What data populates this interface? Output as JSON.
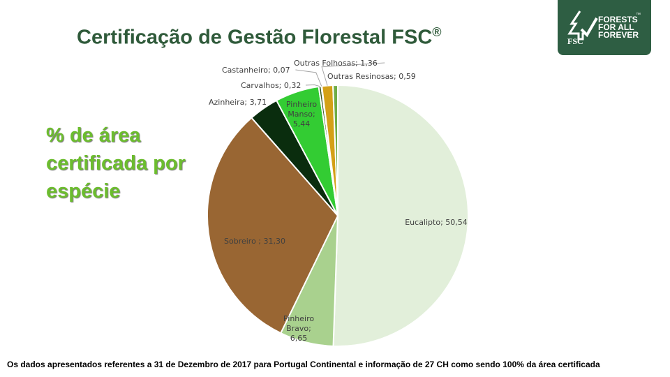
{
  "header": {
    "title": "Certificação de Gestão Florestal FSC",
    "title_mark": "®"
  },
  "logo": {
    "line1": "FORESTS",
    "line2": "FOR ALL",
    "line3": "FOREVER",
    "tm": "™",
    "fsc": "FSC",
    "icon": "tree-check-icon",
    "bg_color": "#2e5e43"
  },
  "side_label": {
    "text": "% de área certificada por espécie",
    "color": "#6cbd2e"
  },
  "footnote": "Os dados apresentados referentes a 31 de Dezembro de 2017 para Portugal Continental e informação de 27 CH como sendo 100% da área certificada",
  "chart_data": {
    "type": "pie",
    "title": "",
    "start_angle_deg": 0,
    "direction": "clockwise",
    "slices": [
      {
        "name": "Eucalipto",
        "value": 50.54,
        "label": "Eucalipto; 50,54",
        "color": "#e2efda"
      },
      {
        "name": "Pinheiro Bravo",
        "value": 6.65,
        "label": "Pinheiro Bravo; 6,65",
        "color": "#a9d18e"
      },
      {
        "name": "Sobreiro",
        "value": 31.3,
        "label": "Sobreiro ; 31,30",
        "color": "#996633"
      },
      {
        "name": "Azinheira",
        "value": 3.71,
        "label": "Azinheira; 3,71",
        "color": "#0a2d0e"
      },
      {
        "name": "Pinheiro Manso",
        "value": 5.44,
        "label": "Pinheiro Manso; 5,44",
        "color": "#33cc33"
      },
      {
        "name": "Carvalhos",
        "value": 0.32,
        "label": "Carvalhos; 0,32",
        "color": "#375623"
      },
      {
        "name": "Castanheiro",
        "value": 0.07,
        "label": "Castanheiro; 0,07",
        "color": "#7f6000"
      },
      {
        "name": "Outras Folhosas",
        "value": 1.36,
        "label": "Outras Folhosas; 1,36",
        "color": "#d4a017"
      },
      {
        "name": "Outras Resinosas",
        "value": 0.59,
        "label": "Outras Resinosas; 0,59",
        "color": "#70ad47"
      }
    ]
  }
}
